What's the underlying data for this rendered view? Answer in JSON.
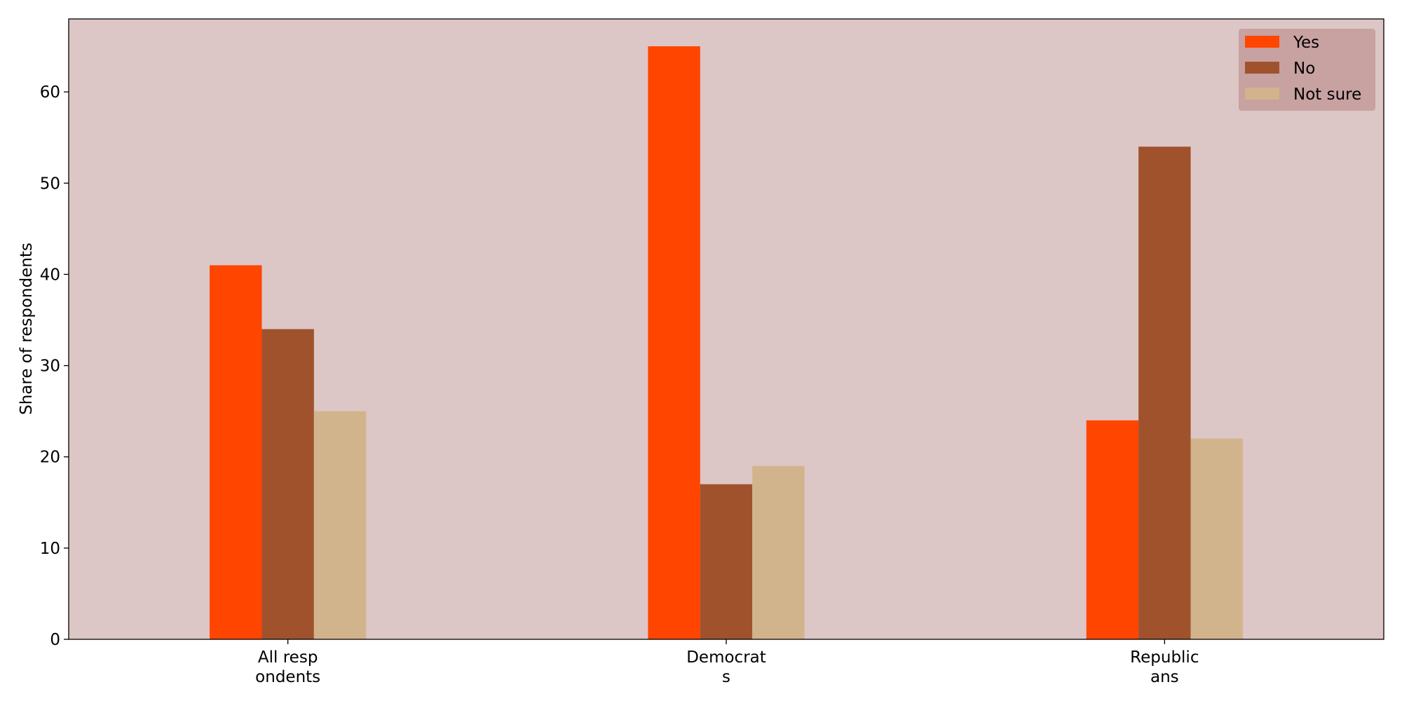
{
  "chart_data": {
    "type": "bar",
    "title": "",
    "xlabel": "",
    "ylabel": "Share of respondents",
    "categories": [
      "All resp\nondents",
      "Democrat\ns",
      "Republic\nans"
    ],
    "series": [
      {
        "name": "Yes",
        "color": "#ff4500",
        "values": [
          41,
          65,
          24
        ]
      },
      {
        "name": "No",
        "color": "#a0522d",
        "values": [
          34,
          17,
          54
        ]
      },
      {
        "name": "Not sure",
        "color": "#d2b48c",
        "values": [
          25,
          19,
          22
        ]
      }
    ],
    "ylim": [
      0,
      68
    ],
    "yticks": [
      0,
      10,
      20,
      30,
      40,
      50,
      60
    ],
    "grid": false,
    "legend_position": "top-right",
    "plot_background": "#ddc6c6",
    "legend_background": "#c49a9a"
  }
}
